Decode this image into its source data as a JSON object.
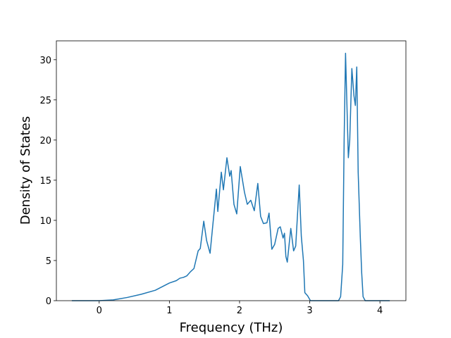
{
  "chart_data": {
    "type": "line",
    "xlabel": "Frequency (THz)",
    "ylabel": "Density of States",
    "xlim": [
      -0.61,
      4.37
    ],
    "ylim": [
      0,
      32.35
    ],
    "xticks": [
      0,
      1,
      2,
      3,
      4
    ],
    "yticks": [
      0,
      5,
      10,
      15,
      20,
      25,
      30
    ],
    "grid": false,
    "series": [
      {
        "color": "#1f77b4",
        "x": [
          -0.39,
          0,
          0.2,
          0.4,
          0.6,
          0.8,
          1.0,
          1.1,
          1.15,
          1.2,
          1.25,
          1.3,
          1.35,
          1.41,
          1.44,
          1.49,
          1.53,
          1.58,
          1.62,
          1.67,
          1.69,
          1.74,
          1.77,
          1.82,
          1.86,
          1.88,
          1.92,
          1.96,
          2.01,
          2.07,
          2.11,
          2.16,
          2.21,
          2.26,
          2.3,
          2.34,
          2.39,
          2.42,
          2.46,
          2.5,
          2.55,
          2.58,
          2.62,
          2.64,
          2.66,
          2.68,
          2.73,
          2.77,
          2.8,
          2.85,
          2.88,
          2.91,
          2.93,
          2.97,
          3.01,
          3.41,
          3.44,
          3.47,
          3.49,
          3.51,
          3.55,
          3.57,
          3.6,
          3.63,
          3.65,
          3.67,
          3.69,
          3.72,
          3.74,
          3.76,
          3.79,
          4.14
        ],
        "values": [
          0,
          0,
          0.1,
          0.4,
          0.8,
          1.3,
          2.2,
          2.5,
          2.8,
          2.9,
          3.1,
          3.6,
          4.0,
          6.2,
          6.5,
          9.9,
          7.5,
          5.9,
          9.5,
          13.9,
          11.1,
          16.0,
          13.8,
          17.8,
          15.5,
          16.2,
          12.0,
          10.8,
          16.7,
          13.5,
          12.0,
          12.5,
          11.2,
          14.6,
          10.5,
          9.6,
          9.7,
          10.9,
          6.4,
          7.0,
          9.0,
          9.2,
          7.8,
          8.4,
          5.5,
          4.8,
          9.0,
          6.2,
          6.8,
          14.4,
          8.0,
          5.0,
          1.0,
          0.6,
          0,
          0,
          0.5,
          4.5,
          20.0,
          30.8,
          17.8,
          20.0,
          28.9,
          25.5,
          24.3,
          29.1,
          16.0,
          8.0,
          3.5,
          0.5,
          0,
          0
        ]
      }
    ]
  }
}
